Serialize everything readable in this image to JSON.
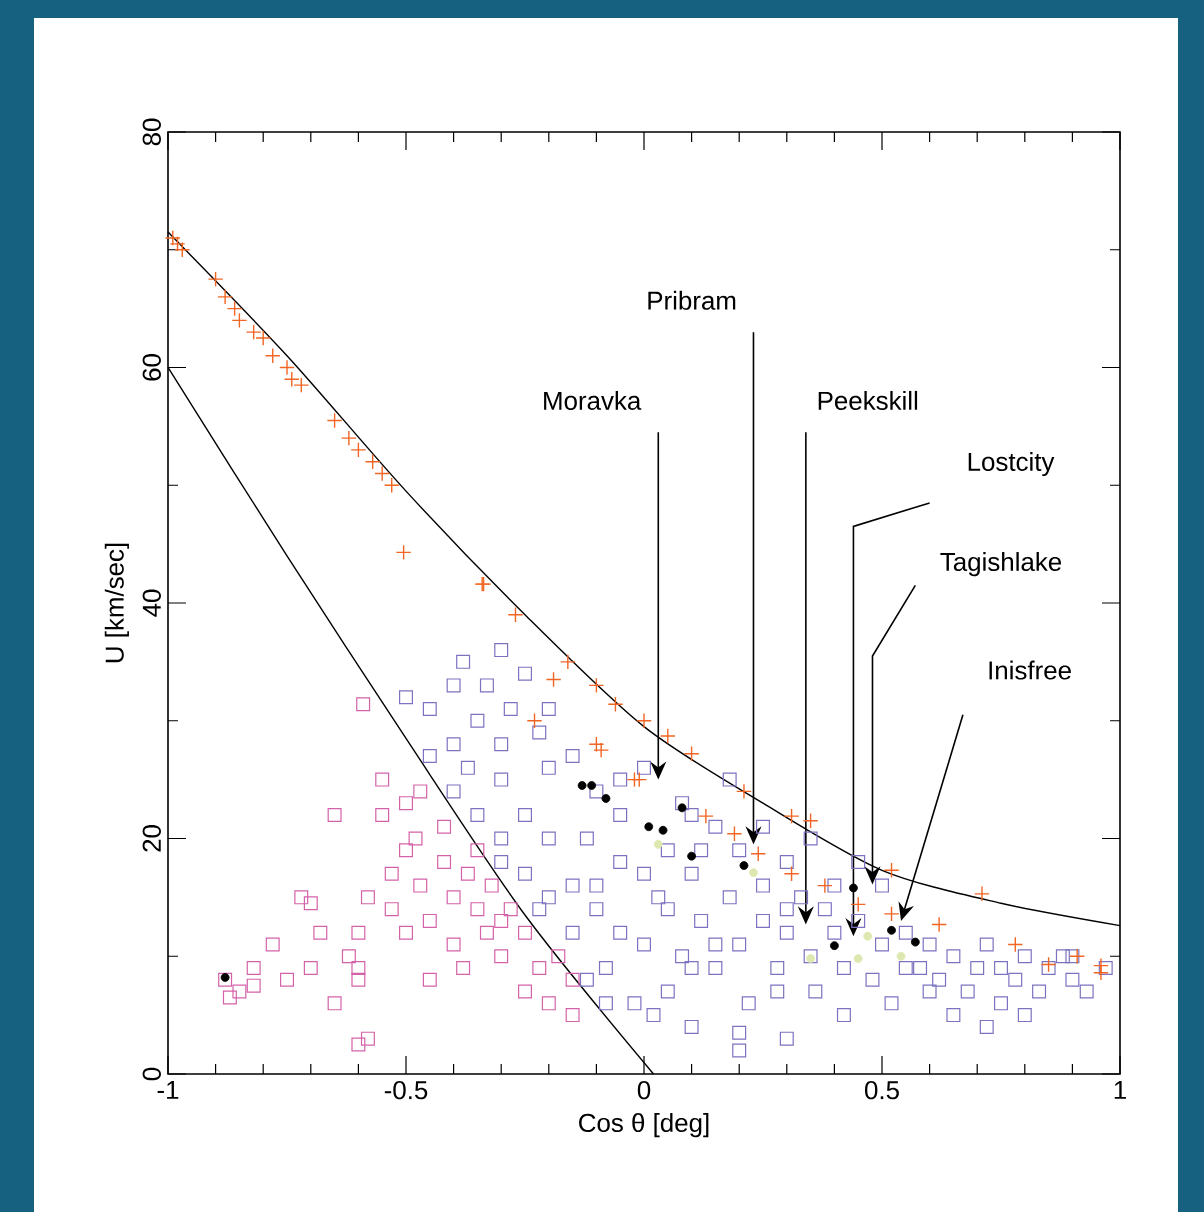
{
  "chart_data": {
    "type": "scatter",
    "xlabel": "Cos θ [deg]",
    "ylabel": "U [km/sec]",
    "xlim": [
      -1,
      1
    ],
    "ylim": [
      0,
      80
    ],
    "xticks": [
      -1,
      -0.5,
      0,
      0.5,
      1
    ],
    "yticks": [
      0,
      20,
      40,
      60,
      80
    ],
    "annotations": [
      {
        "text": "Moravka",
        "x": 0.03,
        "y": 25
      },
      {
        "text": "Pribram",
        "x": 0.23,
        "y": 19.5
      },
      "Peekskill",
      "Lostcity",
      {
        "text": "Tagishlake",
        "x": 0.48,
        "y": 16.1
      },
      "Inisfree"
    ],
    "series": [
      {
        "marker": "square",
        "color": "#7b73c0",
        "x": [
          -0.5,
          -0.45,
          -0.4,
          -0.38,
          -0.35,
          -0.33,
          -0.3,
          -0.3,
          -0.28,
          -0.25,
          -0.22,
          -0.2,
          -0.45,
          -0.4,
          -0.35,
          -0.3,
          -0.25,
          -0.2,
          -0.15,
          -0.1,
          -0.12,
          -0.05,
          -0.05,
          -0.15,
          -0.2,
          -0.1,
          -0.05,
          0,
          -0.08,
          -0.15,
          -0.02,
          0.02,
          0.05,
          0.08,
          0.03,
          0.05,
          0.08,
          0.1,
          0.12,
          0.15,
          0.15,
          0.18,
          0.2,
          0.2,
          0.22,
          0.25,
          0.25,
          0.28,
          0.3,
          0.3,
          0.33,
          0.35,
          0.36,
          0.38,
          0.4,
          0.42,
          0.45,
          0.45,
          0.48,
          0.5,
          0.52,
          0.55,
          0.58,
          0.6,
          0.62,
          0.65,
          0.68,
          0.7,
          0.72,
          0.75,
          0.78,
          0.8,
          0.83,
          0.85,
          0.88,
          0.9,
          0.93,
          0.97,
          0.65,
          0.72,
          0.2,
          0.2,
          0.1,
          -0.1,
          0,
          -0.05,
          0.1,
          0.18,
          0.25,
          0.35,
          -0.3,
          -0.22,
          -0.3,
          -0.25,
          -0.12,
          -0.08,
          0,
          0.05,
          0.12,
          0.3,
          0.4,
          0.55,
          0.42,
          0.1,
          0.15,
          0.28,
          -0.4,
          -0.2,
          -0.37,
          0.5,
          0.6,
          0.75,
          0.8,
          0.9,
          0.3
        ],
        "values": [
          32,
          31,
          33,
          35,
          30,
          33,
          36,
          28,
          31,
          34,
          29,
          26,
          27,
          24,
          22,
          25,
          22,
          20,
          27,
          24,
          20,
          22,
          18,
          16,
          15,
          14,
          12,
          11,
          9,
          12,
          6,
          5,
          7,
          10,
          15,
          19,
          23,
          17,
          13,
          21,
          9,
          15,
          19,
          11,
          6,
          16,
          13,
          9,
          18,
          12,
          15,
          10,
          7,
          14,
          12,
          9,
          13,
          18,
          8,
          11,
          6,
          12,
          9,
          11,
          8,
          10,
          7,
          9,
          11,
          9,
          8,
          10,
          7,
          9,
          10,
          8,
          7,
          9,
          5,
          4,
          2,
          3.5,
          4,
          16,
          26,
          25,
          22,
          25,
          21,
          20,
          18,
          14,
          20,
          17,
          8,
          6,
          17,
          14,
          19,
          14,
          16,
          9,
          5,
          9,
          11,
          7,
          28,
          31,
          26,
          16,
          7,
          6,
          5,
          10,
          3
        ]
      },
      {
        "marker": "square",
        "color": "#d462a8",
        "x": [
          -0.88,
          -0.87,
          -0.85,
          -0.82,
          -0.82,
          -0.78,
          -0.75,
          -0.72,
          -0.7,
          -0.68,
          -0.65,
          -0.62,
          -0.6,
          -0.58,
          -0.55,
          -0.53,
          -0.5,
          -0.5,
          -0.48,
          -0.47,
          -0.45,
          -0.59,
          -0.42,
          -0.42,
          -0.4,
          -0.4,
          -0.47,
          -0.37,
          -0.35,
          -0.35,
          -0.33,
          -0.32,
          -0.3,
          -0.3,
          -0.28,
          -0.25,
          -0.25,
          -0.22,
          -0.2,
          -0.18,
          -0.15,
          -0.15,
          -0.6,
          -0.6,
          -0.58,
          -0.65,
          -0.7,
          -0.45,
          -0.5,
          -0.53,
          -0.38,
          -0.6,
          -0.55
        ],
        "values": [
          8,
          6.5,
          7,
          9,
          7.5,
          11,
          8,
          15,
          14.5,
          12,
          22,
          10,
          9,
          15,
          25,
          17,
          19,
          23,
          20,
          16,
          13,
          31.4,
          21,
          18,
          15,
          11,
          24,
          17,
          14,
          19,
          12,
          16,
          10,
          13,
          14,
          12,
          7,
          9,
          6,
          10,
          5,
          8,
          8,
          2.5,
          3,
          6,
          9,
          8,
          12,
          14,
          9,
          12,
          22
        ]
      },
      {
        "marker": "cross",
        "color": "#f26522",
        "x": [
          -0.99,
          -0.98,
          -0.97,
          -0.9,
          -0.88,
          -0.86,
          -0.85,
          -0.82,
          -0.8,
          -0.78,
          -0.75,
          -0.74,
          -0.72,
          -0.65,
          -0.62,
          -0.6,
          -0.57,
          -0.55,
          -0.53,
          -0.505,
          -0.337,
          -0.34,
          -0.27,
          -0.16,
          -0.19,
          -0.1,
          -0.06,
          0,
          0.05,
          0.1,
          0.21,
          0.31,
          0.35,
          0.52,
          0.71,
          -0.23,
          -0.1,
          -0.02,
          -0.09,
          -0.01,
          0.13,
          0.19,
          0.24,
          0.31,
          0.38,
          0.45,
          0.52,
          0.62,
          0.78,
          0.85,
          0.91,
          0.96,
          0.96
        ],
        "values": [
          71,
          70.5,
          70,
          67.5,
          66,
          65,
          64,
          63,
          62.5,
          61,
          60,
          59,
          58.5,
          55.5,
          54,
          53,
          52,
          51,
          50,
          44.3,
          41.6,
          41.6,
          39,
          35,
          33.5,
          33,
          31.4,
          30,
          28.7,
          27.2,
          24,
          21.9,
          21.5,
          17.3,
          15.3,
          30,
          28,
          25,
          27.5,
          25,
          21.9,
          20.4,
          18.7,
          17,
          16,
          14.4,
          13.6,
          12.7,
          11,
          9.3,
          10,
          9.2,
          8.6
        ]
      },
      {
        "marker": "circle",
        "color": "#000000",
        "x": [
          -0.88,
          -0.13,
          -0.11,
          -0.08,
          0.01,
          0.04,
          0.08,
          0.1,
          0.21,
          0.44,
          0.52,
          0.57,
          0.4
        ],
        "values": [
          8.2,
          24.5,
          24.5,
          23.4,
          21,
          20.7,
          22.6,
          18.5,
          17.7,
          15.8,
          12.2,
          11.2,
          10.9
        ]
      },
      {
        "marker": "circle",
        "color": "#dce8b0",
        "x": [
          0.03,
          0.23,
          0.35,
          0.45,
          0.47,
          0.54
        ],
        "values": [
          19.5,
          17.1,
          9.8,
          9.8,
          11.7,
          10
        ]
      },
      {
        "type": "line",
        "marker": "none",
        "color": "#000000",
        "x": [
          -1,
          -0.75,
          -0.5,
          -0.25,
          0,
          0.25,
          0.5,
          0.75,
          1
        ],
        "values": [
          71.5,
          61,
          49.5,
          39,
          29.5,
          23,
          17.3,
          14.5,
          12.6
        ]
      },
      {
        "type": "line",
        "marker": "none",
        "color": "#000000",
        "x": [
          -1,
          -0.75,
          -0.5,
          -0.25,
          0.02
        ],
        "values": [
          60,
          44,
          28.5,
          13.5,
          0
        ]
      }
    ]
  }
}
